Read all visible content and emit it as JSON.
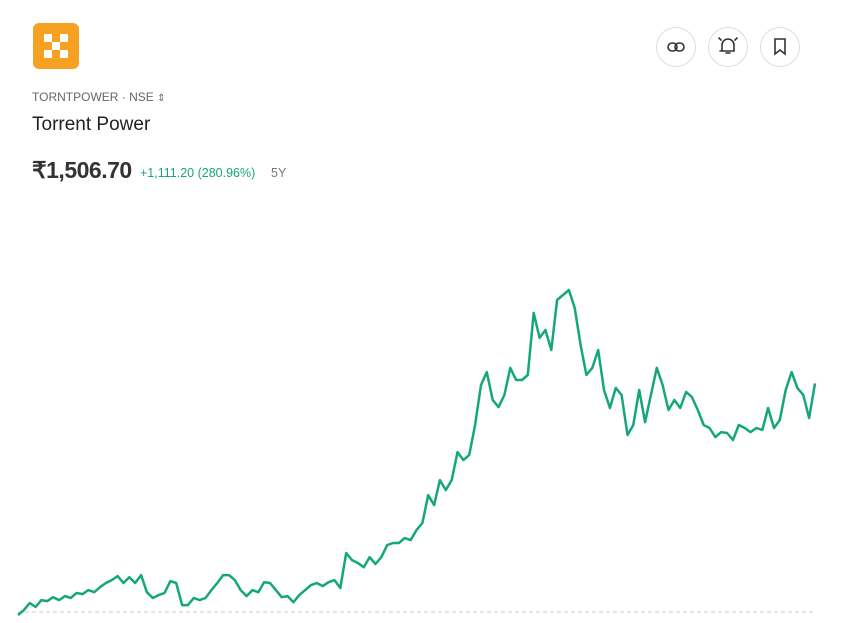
{
  "header": {
    "symbol": "TORNTPOWER · NSE",
    "name": "Torrent Power",
    "price": "₹1,506.70",
    "change": "+1,111.20 (280.96%)",
    "period": "5Y"
  },
  "chart_data": {
    "type": "line",
    "color": "#16a67c",
    "values": [
      395.5,
      419,
      453,
      434,
      467,
      462,
      481,
      467,
      486,
      477,
      501,
      496,
      515,
      505,
      529,
      549,
      563,
      582,
      549,
      577,
      549,
      587,
      505,
      477,
      491,
      501,
      558,
      549,
      443,
      443,
      477,
      467,
      477,
      515,
      549,
      587,
      587,
      563,
      515,
      486,
      515,
      505,
      553,
      549,
      515,
      481,
      486,
      457,
      491,
      515,
      539,
      549,
      534,
      553,
      563,
      525,
      693,
      659,
      645,
      625,
      673,
      640,
      673,
      731,
      741,
      741,
      765,
      755,
      803,
      837,
      971,
      923,
      1043,
      995,
      1043,
      1177,
      1139,
      1163,
      1307,
      1499,
      1561,
      1427,
      1393,
      1451,
      1581,
      1523,
      1523,
      1547,
      1845,
      1725,
      1763,
      1667,
      1907,
      1931,
      1955,
      1869,
      1691,
      1547,
      1581,
      1667,
      1475,
      1389,
      1485,
      1451,
      1259,
      1307,
      1475,
      1321,
      1451,
      1581,
      1499,
      1379,
      1427,
      1389,
      1466,
      1441,
      1379,
      1307,
      1293,
      1249,
      1273,
      1269,
      1235,
      1307,
      1293,
      1273,
      1293,
      1283,
      1389,
      1293,
      1331,
      1475,
      1561,
      1485,
      1451,
      1341,
      1506.7
    ]
  }
}
